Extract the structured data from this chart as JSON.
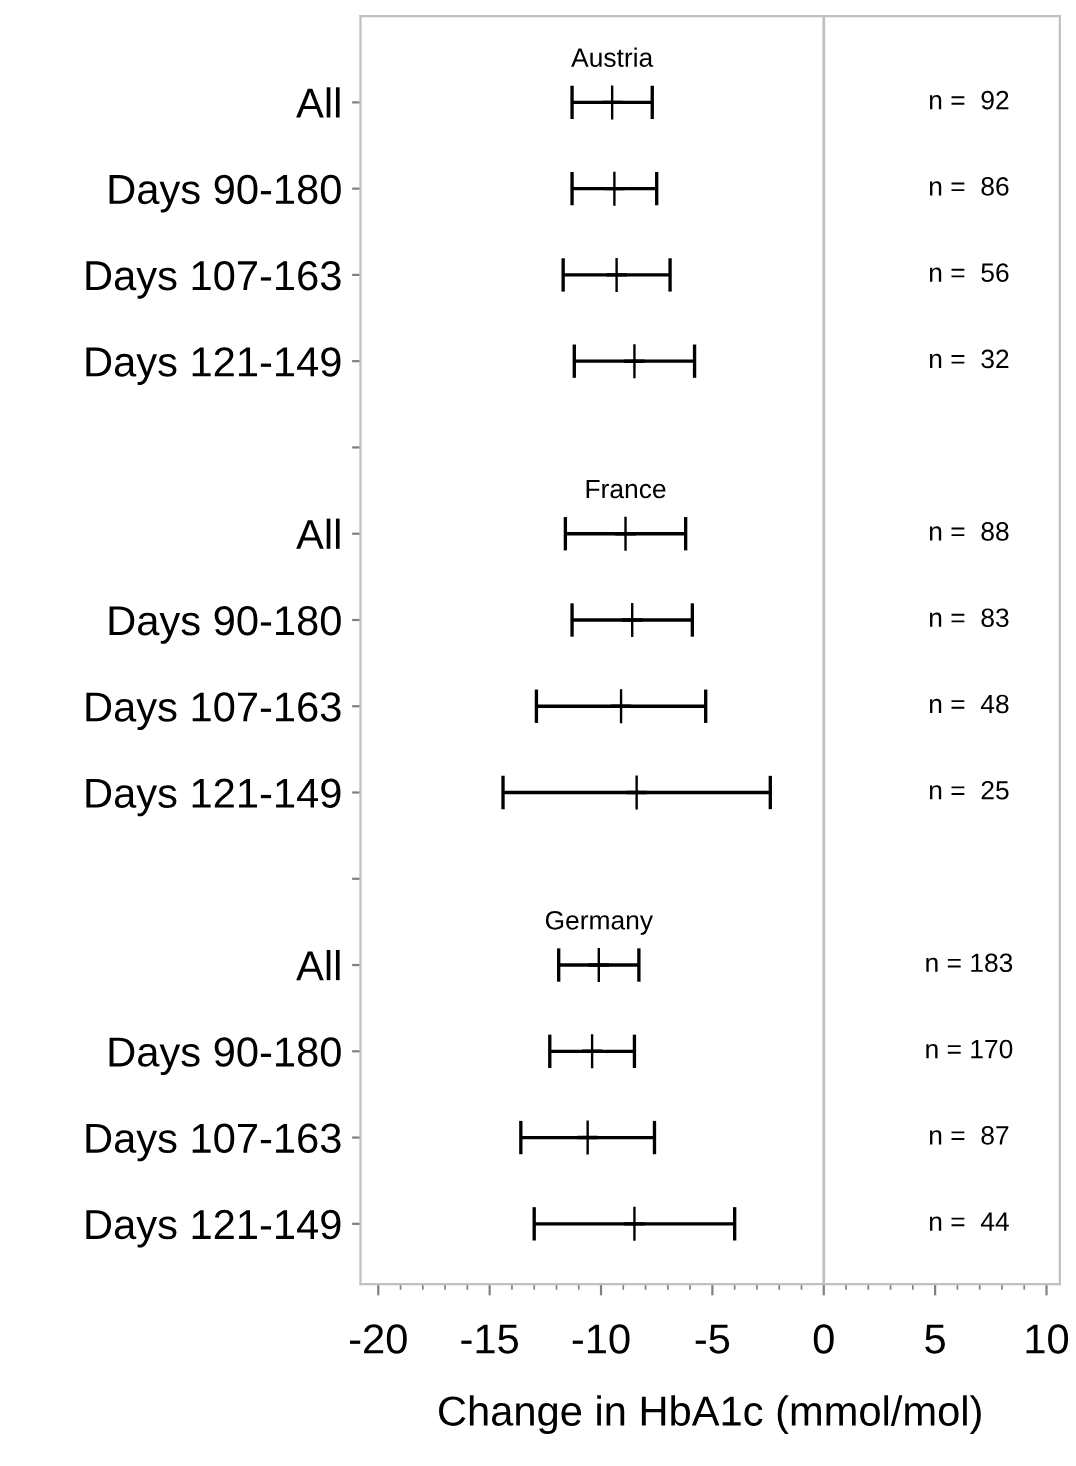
{
  "chart_data": {
    "type": "scatter",
    "orientation": "horizontal",
    "xlabel": "Change in HbA1c (mmol/mol)",
    "categories": [
      "All",
      "Days 90-180",
      "Days 107-163",
      "Days 121-149",
      null,
      "All",
      "Days 90-180",
      "Days 107-163",
      "Days 121-149",
      null,
      "All",
      "Days 90-180",
      "Days 107-163",
      "Days 121-149"
    ],
    "series": [
      {
        "color": "#000000",
        "values": [
          -9.5,
          -9.4,
          -9.3,
          -8.5,
          null,
          -8.9,
          -8.6,
          -9.1,
          -8.4,
          null,
          -10.1,
          -10.4,
          -10.6,
          -8.5
        ],
        "errors": [
          1.8,
          1.9,
          2.4,
          2.7,
          null,
          2.7,
          2.7,
          3.8,
          6.0,
          null,
          1.8,
          1.9,
          3.0,
          4.5
        ]
      }
    ],
    "xlim": [
      -20.8,
      10.6
    ],
    "xticks": [
      -20,
      -15,
      -10,
      -5,
      0,
      5,
      10
    ],
    "ref_lines": [
      {
        "axis": "x",
        "value": 0,
        "color": "#c0c0c0"
      }
    ],
    "annotations": [
      "Austria",
      "France",
      "Germany",
      "n =  92",
      "n =  86",
      "n =  56",
      "n =  32",
      "n =  88",
      "n =  83",
      "n =  48",
      "n =  25",
      "n = 183",
      "n = 170",
      "n =  87",
      "n =  44"
    ],
    "grid": false,
    "legend": false
  }
}
